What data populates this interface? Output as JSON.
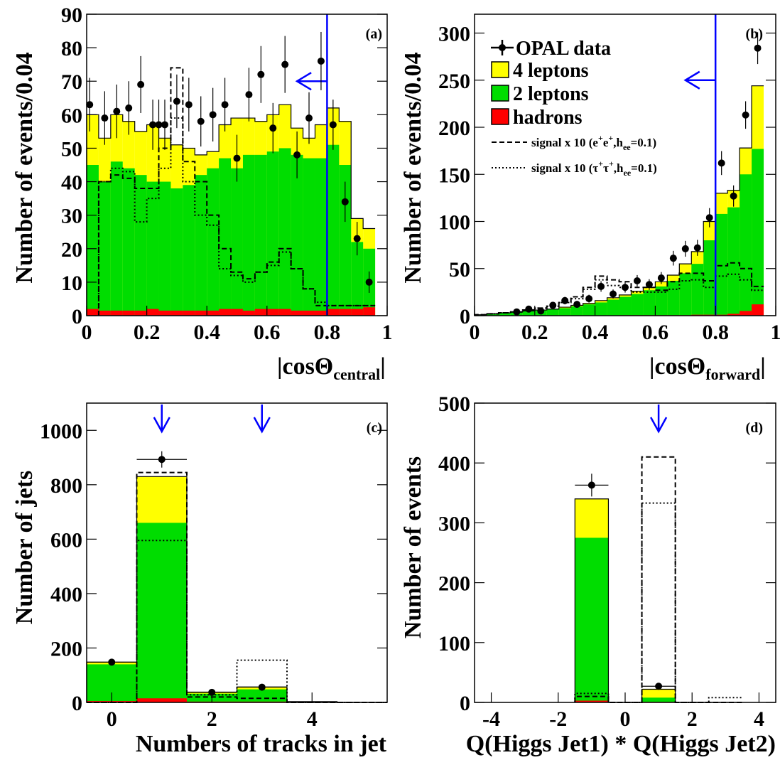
{
  "colors": {
    "four_leptons": "#ffff00",
    "two_leptons": "#00dd00",
    "hadrons": "#ff0000",
    "cut": "#0000ff",
    "data": "#000000"
  },
  "legend": {
    "data": "OPAL data",
    "four_leptons": "4 leptons",
    "two_leptons": "2 leptons",
    "hadrons": "hadrons",
    "sig_ee_prefix": "signal x 10 (e",
    "sig_ee_coupling": ",h",
    "sig_ee_sub": "ee",
    "sig_ee_value": "=0.1)",
    "sig_tt_prefix": "signal x 10 (τ",
    "sig_tt_coupling": ",h",
    "sig_tt_sub": "ee",
    "sig_tt_value": "=0.1)",
    "sup_plus": "+"
  },
  "chart_data": [
    {
      "type": "histogram",
      "panel": "(a)",
      "ylabel": "Number of events/0.04",
      "xlabel_main": "|cosΘ",
      "xlabel_sub": "central",
      "xlabel_end": "|",
      "xlim": [
        0,
        1
      ],
      "ylim": [
        0,
        90
      ],
      "xticks": [
        0,
        0.2,
        0.4,
        0.6,
        0.8,
        1
      ],
      "xtick_labels": [
        "0",
        "0.2",
        "0.4",
        "0.6",
        "0.8",
        "1"
      ],
      "yticks": [
        0,
        10,
        20,
        30,
        40,
        50,
        60,
        70,
        80,
        90
      ],
      "ytick_labels": [
        "0",
        "10",
        "20",
        "30",
        "40",
        "50",
        "60",
        "70",
        "80",
        "90"
      ],
      "bin_edges": [
        0,
        0.04,
        0.08,
        0.12,
        0.16,
        0.2,
        0.24,
        0.28,
        0.32,
        0.36,
        0.4,
        0.44,
        0.48,
        0.52,
        0.56,
        0.6,
        0.64,
        0.68,
        0.72,
        0.76,
        0.8,
        0.84,
        0.88,
        0.92,
        0.96
      ],
      "stack_total": [
        60,
        53,
        60,
        58,
        55,
        57,
        53,
        51,
        50,
        48,
        49,
        57,
        59,
        59,
        58,
        60,
        63,
        56,
        53,
        57,
        62,
        58,
        29,
        26,
        10
      ],
      "two_leptons": [
        45,
        40,
        46,
        44,
        42,
        40,
        40,
        38,
        39,
        42,
        44,
        47,
        44,
        48,
        48,
        49,
        50,
        48,
        47,
        47,
        51,
        45,
        22,
        20,
        8
      ],
      "hadrons": [
        2,
        1.5,
        1.5,
        1.5,
        1.5,
        2,
        1.5,
        1.5,
        1.5,
        1.5,
        1.5,
        2,
        2,
        1.5,
        2,
        2,
        2,
        1.5,
        1.5,
        1.5,
        2,
        2,
        2,
        2.5,
        0.5
      ],
      "signal_ee": [
        null,
        40,
        42,
        41,
        38,
        38,
        50,
        74,
        46,
        40,
        30,
        20,
        13,
        11,
        13,
        16,
        20,
        14,
        8,
        3,
        3,
        3,
        3,
        3,
        1
      ],
      "signal_tt": [
        null,
        40,
        44,
        43,
        28,
        35,
        44,
        59,
        40,
        30,
        27,
        14,
        12,
        10,
        13,
        15,
        19,
        14,
        8,
        4,
        3,
        3,
        3,
        3,
        1
      ],
      "data": {
        "x": [
          0.01,
          0.06,
          0.1,
          0.14,
          0.18,
          0.22,
          0.24,
          0.26,
          0.3,
          0.34,
          0.38,
          0.42,
          0.46,
          0.5,
          0.54,
          0.58,
          0.62,
          0.66,
          0.7,
          0.74,
          0.78,
          0.82,
          0.86,
          0.9,
          0.94
        ],
        "y": [
          63,
          59,
          61,
          62,
          69,
          57,
          57,
          57,
          64,
          63,
          58,
          60,
          63,
          47,
          66,
          72,
          56,
          75,
          48,
          59,
          76,
          57,
          34,
          23,
          10
        ],
        "err": [
          8,
          8,
          8,
          8,
          8.5,
          7.5,
          7.5,
          7.5,
          8,
          8,
          7.5,
          8,
          8,
          7,
          8,
          8.5,
          7.5,
          8.5,
          7,
          7.7,
          8.7,
          7.5,
          6,
          5,
          3.2
        ]
      },
      "cuts": [
        0.8
      ],
      "arrow": {
        "x_from": 0.8,
        "x_to": 0.7,
        "y": 70
      }
    },
    {
      "type": "histogram",
      "panel": "(b)",
      "ylabel": "Number of events/0.04",
      "xlabel_main": "|cosΘ",
      "xlabel_sub": "forward",
      "xlabel_end": "|",
      "xlim": [
        0,
        1
      ],
      "ylim": [
        0,
        320
      ],
      "xticks": [
        0,
        0.2,
        0.4,
        0.6,
        0.8,
        1
      ],
      "xtick_labels": [
        "0",
        "0.2",
        "0.4",
        "0.6",
        "0.8",
        "1"
      ],
      "yticks": [
        0,
        50,
        100,
        150,
        200,
        250,
        300
      ],
      "ytick_labels": [
        "0",
        "50",
        "100",
        "150",
        "200",
        "250",
        "300"
      ],
      "bin_edges": [
        0,
        0.04,
        0.08,
        0.12,
        0.16,
        0.2,
        0.24,
        0.28,
        0.32,
        0.36,
        0.4,
        0.44,
        0.48,
        0.52,
        0.56,
        0.6,
        0.64,
        0.68,
        0.72,
        0.76,
        0.8,
        0.84,
        0.88,
        0.92,
        0.96
      ],
      "stack_total": [
        1,
        2,
        3,
        4,
        5,
        6,
        7,
        9,
        11,
        13,
        16,
        19,
        22,
        26,
        30,
        36,
        43,
        55,
        68,
        100,
        130,
        133,
        178,
        244
      ],
      "two_leptons": [
        1,
        2,
        3,
        4,
        5,
        6,
        7,
        8,
        10,
        12,
        14,
        17,
        20,
        23,
        27,
        31,
        37,
        45,
        55,
        80,
        108,
        115,
        150,
        177
      ],
      "hadrons": [
        0,
        0,
        0,
        0,
        0,
        0,
        0,
        0,
        0,
        0,
        0,
        0,
        0.5,
        0.5,
        0.5,
        0.5,
        0.5,
        0.5,
        1,
        1,
        1,
        2,
        5,
        12
      ],
      "signal_ee": [
        1,
        2,
        3,
        4,
        6,
        8,
        10,
        14,
        20,
        30,
        42,
        38,
        36,
        30,
        30,
        27,
        36,
        45,
        45,
        37,
        53,
        56,
        50,
        31
      ],
      "signal_tt": [
        1,
        2,
        3,
        4,
        6,
        8,
        10,
        14,
        18,
        28,
        38,
        32,
        30,
        25,
        25,
        25,
        28,
        37,
        38,
        30,
        42,
        44,
        38,
        27
      ],
      "data": {
        "x": [
          0.14,
          0.18,
          0.22,
          0.26,
          0.3,
          0.34,
          0.38,
          0.42,
          0.46,
          0.5,
          0.54,
          0.58,
          0.62,
          0.66,
          0.7,
          0.74,
          0.78,
          0.82,
          0.86,
          0.9,
          0.94
        ],
        "y": [
          4,
          7,
          5,
          11,
          16,
          12,
          18,
          31,
          23,
          30,
          37,
          33,
          40,
          61,
          71,
          72,
          104,
          162,
          127,
          213,
          284
        ],
        "err": [
          2,
          2.6,
          2.2,
          3.3,
          4,
          3.5,
          4.2,
          5.6,
          4.8,
          5.5,
          6.1,
          5.7,
          6.3,
          7.8,
          8.4,
          8.5,
          10.2,
          12.7,
          11.3,
          14.6,
          16.9
        ]
      },
      "cuts": [
        0.8
      ],
      "arrow": {
        "x_from": 0.8,
        "x_to": 0.7,
        "y": 250
      }
    },
    {
      "type": "histogram",
      "panel": "(c)",
      "ylabel": "Number of jets",
      "xlabel_main": "Numbers of tracks in jet",
      "xlim": [
        -0.5,
        5.5
      ],
      "ylim": [
        0,
        1100
      ],
      "xticks": [
        0,
        2,
        4
      ],
      "xtick_labels": [
        "0",
        "2",
        "4"
      ],
      "yticks": [
        0,
        200,
        400,
        600,
        800,
        1000
      ],
      "ytick_labels": [
        "0",
        "200",
        "400",
        "600",
        "800",
        "1000"
      ],
      "bin_edges": [
        -0.5,
        0.5,
        1.5,
        2.5,
        3.5,
        4.5,
        5.5
      ],
      "stack_total": [
        148,
        830,
        38,
        57,
        3,
        0
      ],
      "two_leptons": [
        140,
        660,
        32,
        48,
        2,
        0
      ],
      "hadrons": [
        5,
        15,
        3,
        3,
        1,
        0
      ],
      "signal_ee": [
        0,
        845,
        20,
        15,
        0,
        0
      ],
      "signal_tt": [
        0,
        595,
        28,
        155,
        0,
        0
      ],
      "data": {
        "x": [
          0,
          1,
          2,
          3
        ],
        "y": [
          148,
          893,
          37,
          56
        ],
        "xerr": [
          0.5,
          0.5,
          0.5,
          0.5
        ],
        "err": [
          12,
          30,
          6,
          8
        ]
      },
      "cut_arrows": [
        1,
        3
      ]
    },
    {
      "type": "histogram",
      "panel": "(d)",
      "ylabel": "Number of events",
      "xlabel_main": "Q(Higgs Jet1) * Q(Higgs Jet2)",
      "xlim": [
        -4.5,
        4.5
      ],
      "ylim": [
        0,
        500
      ],
      "xticks": [
        -4,
        -2,
        0,
        2,
        4
      ],
      "xtick_labels": [
        "-4",
        "-2",
        "0",
        "2",
        "4"
      ],
      "yticks": [
        0,
        100,
        200,
        300,
        400,
        500
      ],
      "ytick_labels": [
        "0",
        "100",
        "200",
        "300",
        "400",
        "500"
      ],
      "bin_edges": [
        -1.5,
        -0.5,
        0.5,
        1.5,
        2.5,
        3.5
      ],
      "stack_total": [
        340,
        0,
        22,
        0,
        0
      ],
      "two_leptons": [
        275,
        0,
        8,
        0,
        0
      ],
      "hadrons": [
        3,
        0,
        1,
        0,
        0
      ],
      "signal_ee": [
        10,
        0,
        410,
        0,
        0
      ],
      "signal_tt": [
        15,
        0,
        333,
        0,
        8
      ],
      "data": {
        "x": [
          -1,
          1
        ],
        "y": [
          363,
          27
        ],
        "xerr": [
          0.5,
          0.5
        ],
        "err": [
          19,
          5
        ]
      },
      "cut_arrows": [
        1
      ]
    }
  ]
}
